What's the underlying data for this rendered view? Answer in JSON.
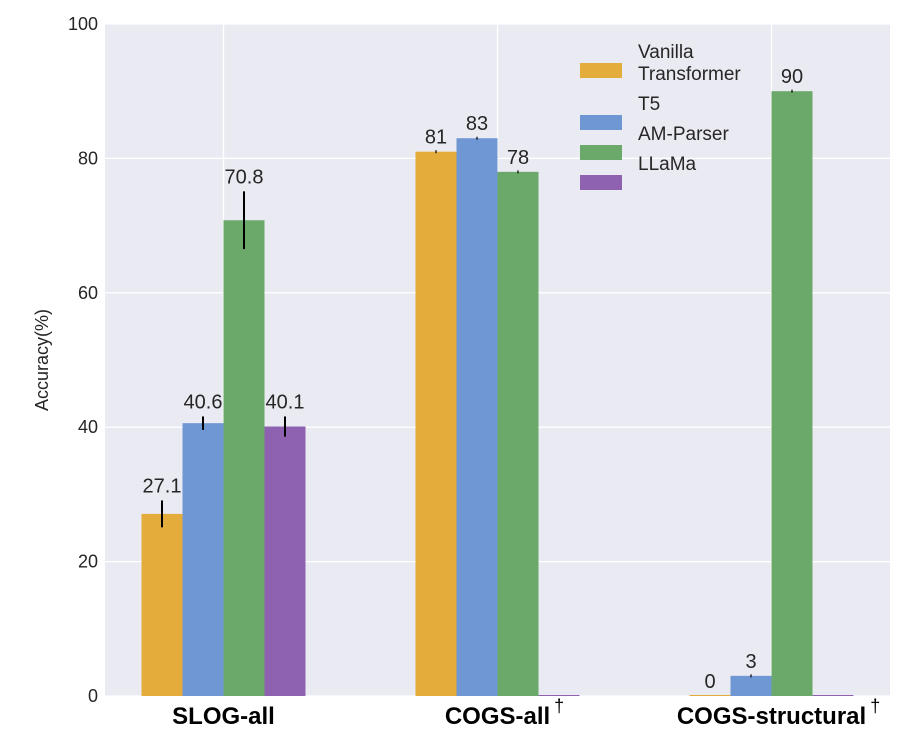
{
  "chart_data": {
    "type": "bar",
    "ylabel": "Accuracy(%)",
    "ylim": [
      0,
      100
    ],
    "yticks": [
      "0",
      "20",
      "40",
      "60",
      "80",
      "100"
    ],
    "categories": [
      "SLOG-all",
      "COGS-all",
      "COGS-structural"
    ],
    "category_marks": [
      "",
      "†",
      "†"
    ],
    "grid": true,
    "legend_position": "top-right",
    "series": [
      {
        "name": "Vanilla Transformer",
        "name_lines": [
          "Vanilla",
          "Transformer"
        ],
        "color": "#E3AC3B",
        "values": [
          27.1,
          81,
          0
        ],
        "labels": [
          "27.1",
          "81",
          "0"
        ],
        "errors": [
          2,
          0,
          0
        ]
      },
      {
        "name": "T5",
        "name_lines": [
          "T5"
        ],
        "color": "#6F97D4",
        "values": [
          40.6,
          83,
          3
        ],
        "labels": [
          "40.6",
          "83",
          "3"
        ],
        "errors": [
          1,
          0,
          0
        ]
      },
      {
        "name": "AM-Parser",
        "name_lines": [
          "AM-Parser"
        ],
        "color": "#6BA96A",
        "values": [
          70.8,
          78,
          90
        ],
        "labels": [
          "70.8",
          "78",
          "90"
        ],
        "errors": [
          4.3,
          0,
          0
        ]
      },
      {
        "name": "LLaMa",
        "name_lines": [
          "LLaMa"
        ],
        "color": "#8E62B0",
        "values": [
          40.1,
          0,
          0
        ],
        "labels": [
          "40.1",
          "",
          ""
        ],
        "errors": [
          1.5,
          0,
          0
        ]
      }
    ]
  }
}
